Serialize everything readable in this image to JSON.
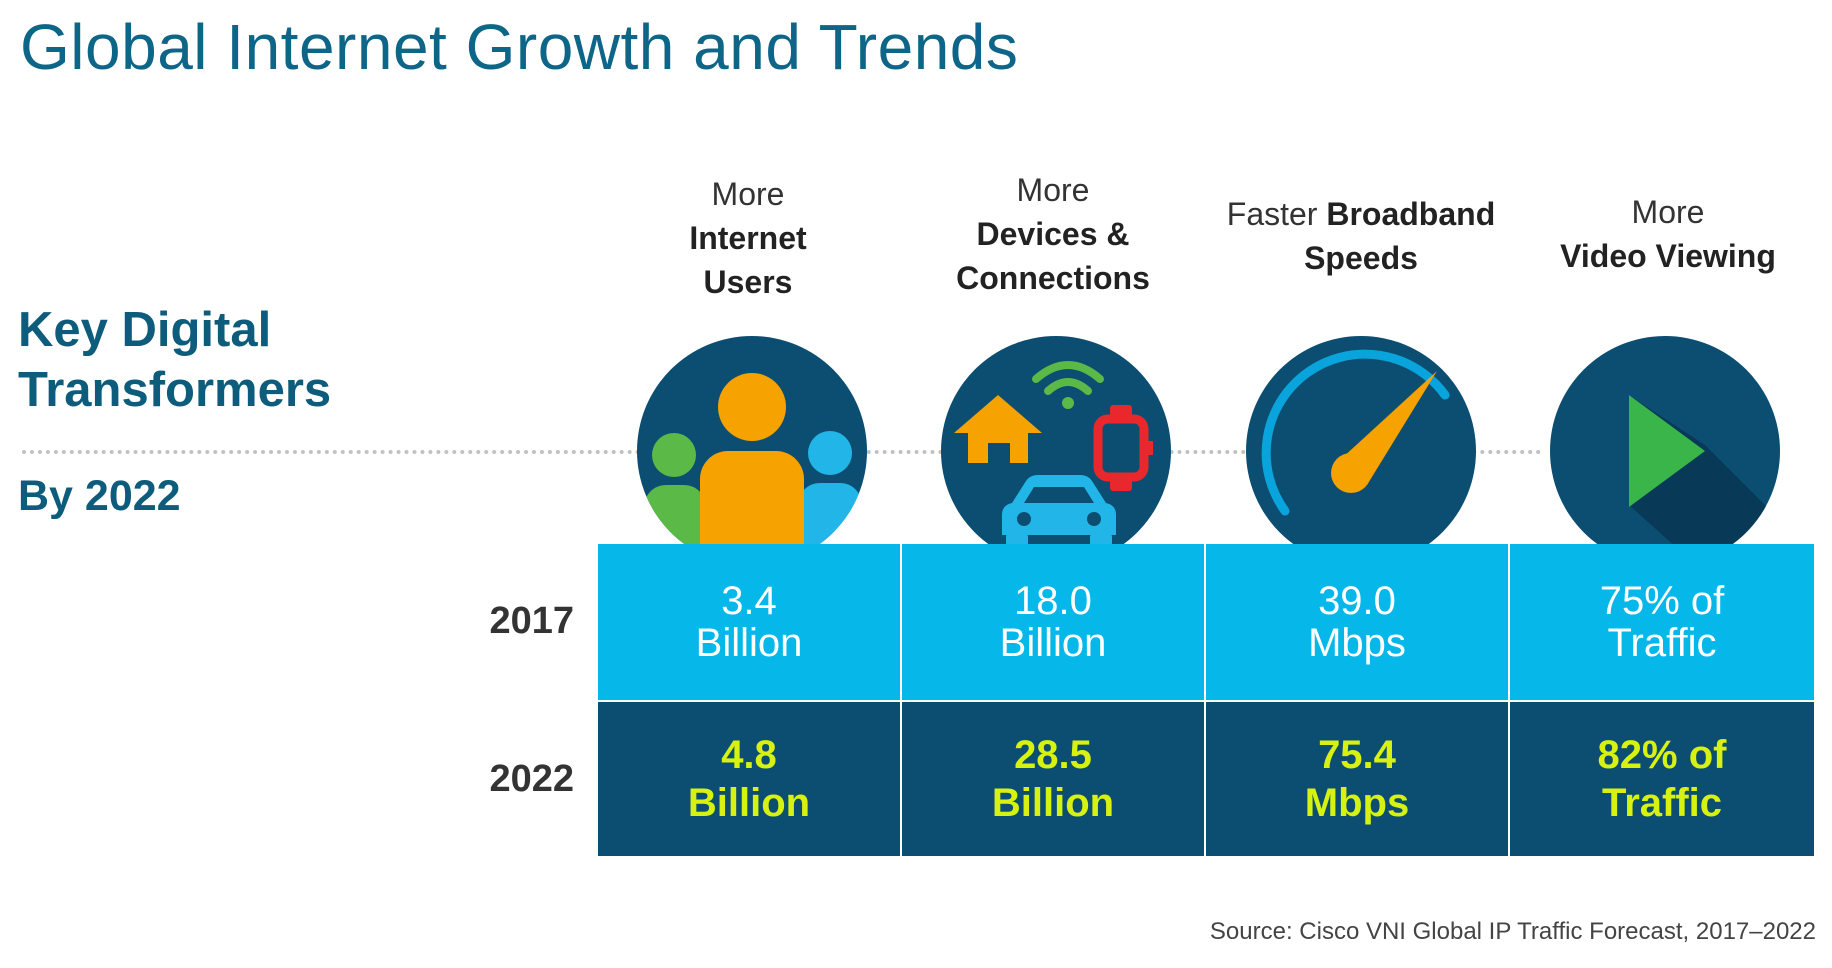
{
  "title": "Global Internet Growth and Trends",
  "side": {
    "heading_line1": "Key Digital",
    "heading_line2": "Transformers",
    "subheading": "By 2022"
  },
  "columns": [
    {
      "label_line1": "More",
      "label_line2": "Internet",
      "label_line3": "Users",
      "icon": "internet-users-icon",
      "value_2017_line1": "3.4",
      "value_2017_line2": "Billion",
      "value_2022_line1": "4.8",
      "value_2022_line2": "Billion"
    },
    {
      "label_line1": "More",
      "label_line2": "Devices &",
      "label_line3": "Connections",
      "icon": "devices-connections-icon",
      "value_2017_line1": "18.0",
      "value_2017_line2": "Billion",
      "value_2022_line1": "28.5",
      "value_2022_line2": "Billion"
    },
    {
      "label_plain": "Faster",
      "label_bold": "Broadband",
      "label_line2": "Speeds",
      "icon": "speedometer-icon",
      "value_2017_line1": "39.0",
      "value_2017_line2": "Mbps",
      "value_2022_line1": "75.4",
      "value_2022_line2": "Mbps"
    },
    {
      "label_line1": "More",
      "label_line2": "Video Viewing",
      "icon": "play-video-icon",
      "value_2017_line1": "75% of",
      "value_2017_line2": "Traffic",
      "value_2022_line1": "82% of",
      "value_2022_line2": "Traffic"
    }
  ],
  "years": {
    "row1": "2017",
    "row2": "2022"
  },
  "source": "Source:  Cisco VNI Global IP Traffic Forecast, 2017–2022",
  "colors": {
    "title": "#0d6688",
    "row_2017": "#06b7ea",
    "row_2022": "#0c4e72",
    "highlight_text": "#d7f111",
    "icon_circle": "#0c4e72"
  }
}
